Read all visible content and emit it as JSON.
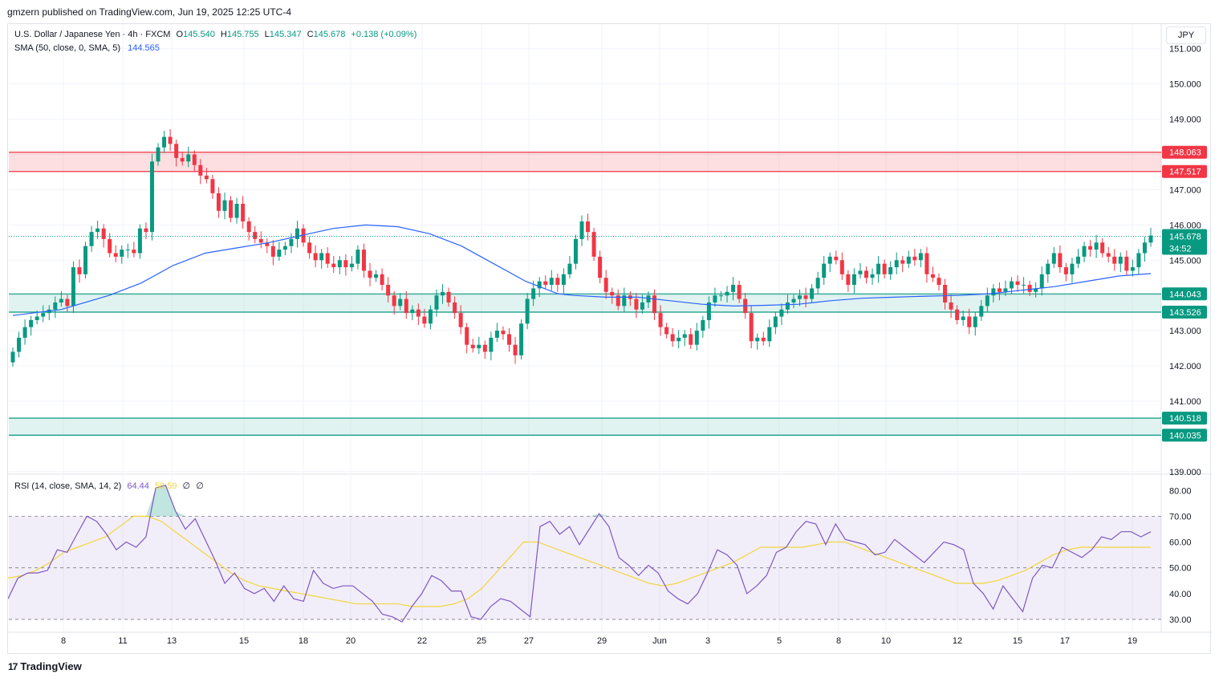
{
  "publisher": "gmzern published on TradingView.com, Jun 19, 2025 12:25 UTC-4",
  "legend": {
    "symbol": "U.S. Dollar / Japanese Yen · 4h · FXCM",
    "o_label": "O",
    "o": "145.540",
    "h_label": "H",
    "h": "145.755",
    "l_label": "L",
    "l": "145.347",
    "c_label": "C",
    "c": "145.678",
    "change": "+0.138 (+0.09%)",
    "sma_label": "SMA (50, close, 0, SMA, 5)",
    "sma_value": "144.565"
  },
  "rsi_legend": {
    "label": "RSI (14, close, SMA, 14, 2)",
    "rsi": "64.44",
    "rsi_sma": "58.59",
    "x1": "∅",
    "x2": "∅"
  },
  "currency": "JPY",
  "footer": {
    "logo_mark": "17",
    "brand": "TradingView"
  },
  "colors": {
    "up": "#089981",
    "down": "#f23645",
    "sma": "#2962ff",
    "rsi": "#7e57c2",
    "rsi_sma": "#f2d53c"
  },
  "chart_data": {
    "type": "candlestick",
    "price_axis": {
      "ticks": [
        "151.000",
        "150.000",
        "149.000",
        "148.000",
        "147.000",
        "146.000",
        "145.000",
        "144.000",
        "143.000",
        "142.000",
        "141.000",
        "140.000",
        "139.000"
      ],
      "range": [
        138.95,
        151.7
      ]
    },
    "time_axis": {
      "labels": [
        "8",
        "11",
        "13",
        "15",
        "18",
        "20",
        "22",
        "25",
        "27",
        "29",
        "Jun",
        "3",
        "5",
        "8",
        "10",
        "12",
        "15",
        "17",
        "19"
      ]
    },
    "zones": [
      {
        "name": "resistance",
        "top": 148.063,
        "bottom": 147.517,
        "top_label": "148.063",
        "bottom_label": "147.517",
        "color": "#f23645"
      },
      {
        "name": "support-1",
        "top": 144.043,
        "bottom": 143.526,
        "top_label": "144.043",
        "bottom_label": "143.526",
        "color": "#089981"
      },
      {
        "name": "support-2",
        "top": 140.518,
        "bottom": 140.035,
        "top_label": "140.518",
        "bottom_label": "140.035",
        "color": "#089981"
      }
    ],
    "last_price": {
      "value": 145.678,
      "label": "145.678",
      "countdown": "34:52"
    },
    "closes": [
      142.4,
      142.8,
      143.1,
      143.3,
      143.4,
      143.5,
      143.6,
      143.8,
      143.9,
      143.7,
      144.8,
      144.6,
      145.4,
      145.8,
      145.9,
      145.6,
      145.2,
      145.1,
      145.3,
      145.3,
      145.2,
      145.9,
      145.8,
      147.8,
      148.2,
      148.5,
      148.3,
      147.9,
      147.8,
      148.0,
      147.7,
      147.4,
      147.3,
      146.9,
      146.4,
      146.7,
      146.2,
      146.6,
      146.1,
      145.8,
      145.6,
      145.5,
      145.4,
      145.1,
      145.3,
      145.4,
      145.6,
      145.9,
      145.5,
      145.2,
      145.0,
      145.2,
      144.9,
      144.8,
      145.0,
      144.8,
      144.9,
      145.3,
      144.7,
      144.5,
      144.6,
      144.3,
      144.0,
      143.7,
      143.9,
      143.5,
      143.6,
      143.4,
      143.2,
      143.6,
      144.0,
      144.1,
      143.8,
      143.5,
      143.1,
      142.6,
      142.5,
      142.6,
      142.4,
      142.8,
      143.0,
      142.9,
      142.6,
      142.3,
      143.2,
      143.9,
      144.2,
      144.4,
      144.3,
      144.5,
      144.3,
      144.6,
      144.9,
      145.6,
      146.1,
      145.8,
      145.1,
      144.5,
      144.1,
      144.0,
      143.7,
      144.0,
      143.9,
      143.6,
      143.8,
      144.0,
      143.5,
      143.1,
      142.9,
      142.7,
      142.8,
      142.9,
      142.6,
      143.0,
      143.3,
      143.8,
      144.0,
      144.0,
      144.1,
      144.3,
      143.9,
      143.5,
      142.7,
      142.8,
      142.7,
      143.1,
      143.4,
      143.6,
      143.8,
      143.9,
      144.0,
      143.9,
      144.2,
      144.5,
      144.9,
      145.1,
      145.0,
      144.6,
      144.3,
      144.6,
      144.7,
      144.5,
      144.6,
      144.9,
      144.6,
      144.8,
      145.0,
      144.9,
      145.1,
      145.0,
      145.2,
      144.6,
      144.5,
      144.3,
      143.8,
      143.6,
      143.3,
      143.4,
      143.1,
      143.4,
      143.7,
      144.0,
      144.2,
      144.1,
      144.2,
      144.4,
      144.3,
      144.3,
      144.1,
      144.2,
      144.6,
      144.9,
      145.2,
      144.8,
      144.6,
      144.9,
      145.1,
      145.4,
      145.3,
      145.5,
      145.2,
      145.1,
      144.9,
      145.1,
      144.7,
      144.8,
      145.2,
      145.5,
      145.7
    ],
    "sma50": [
      [
        0,
        143.43
      ],
      [
        60,
        143.6
      ],
      [
        120,
        144.0
      ],
      [
        160,
        144.35
      ],
      [
        200,
        144.85
      ],
      [
        240,
        145.2
      ],
      [
        280,
        145.35
      ],
      [
        320,
        145.5
      ],
      [
        360,
        145.7
      ],
      [
        400,
        145.9
      ],
      [
        440,
        146.0
      ],
      [
        480,
        145.95
      ],
      [
        520,
        145.75
      ],
      [
        560,
        145.4
      ],
      [
        600,
        144.9
      ],
      [
        640,
        144.4
      ],
      [
        680,
        144.05
      ],
      [
        700,
        144.0
      ],
      [
        740,
        143.95
      ],
      [
        780,
        143.95
      ],
      [
        820,
        143.85
      ],
      [
        860,
        143.75
      ],
      [
        900,
        143.7
      ],
      [
        940,
        143.72
      ],
      [
        980,
        143.75
      ],
      [
        1020,
        143.85
      ],
      [
        1060,
        143.92
      ],
      [
        1100,
        143.95
      ],
      [
        1140,
        143.98
      ],
      [
        1180,
        144.0
      ],
      [
        1220,
        144.05
      ],
      [
        1260,
        144.15
      ],
      [
        1300,
        144.25
      ],
      [
        1340,
        144.4
      ],
      [
        1380,
        144.55
      ],
      [
        1420,
        144.62
      ]
    ],
    "rsi": {
      "range": [
        25,
        86
      ],
      "ticks": [
        "80.00",
        "70.00",
        "60.00",
        "50.00",
        "40.00",
        "30.00"
      ],
      "bands": [
        70,
        50,
        30
      ],
      "values": [
        38,
        46,
        48,
        48,
        49,
        57,
        56,
        63,
        70,
        68,
        63,
        57,
        60,
        58,
        62,
        81,
        82,
        72,
        65,
        69,
        61,
        53,
        44,
        48,
        42,
        40,
        42,
        37,
        43,
        38,
        37,
        49,
        44,
        42,
        43,
        43,
        40,
        37,
        32,
        31,
        29,
        35,
        40,
        47,
        45,
        41,
        41,
        31,
        30,
        35,
        38,
        37,
        34,
        31,
        66,
        68,
        63,
        66,
        59,
        65,
        71,
        66,
        54,
        51,
        47,
        51,
        48,
        41,
        38,
        36,
        40,
        48,
        57,
        55,
        51,
        40,
        43,
        47,
        56,
        58,
        64,
        68,
        67,
        59,
        67,
        61,
        60,
        59,
        55,
        56,
        61,
        58,
        55,
        52,
        56,
        60,
        59,
        57,
        44,
        40,
        34,
        43,
        38,
        33,
        46,
        51,
        50,
        58,
        56,
        54,
        57,
        62,
        61,
        64,
        64,
        62,
        64
      ],
      "sma": [
        46,
        47,
        49,
        52,
        56,
        58,
        60,
        62,
        66,
        70,
        70,
        68,
        64,
        60,
        56,
        52,
        48,
        45,
        43,
        42,
        41,
        40,
        39,
        38,
        37,
        36,
        36,
        36,
        36,
        35,
        35,
        35,
        36,
        38,
        42,
        48,
        54,
        60,
        60,
        58,
        56,
        54,
        52,
        50,
        48,
        46,
        44,
        43,
        44,
        46,
        48,
        50,
        52,
        55,
        58,
        58,
        58,
        58,
        59,
        60,
        60,
        58,
        56,
        54,
        52,
        50,
        48,
        46,
        44,
        44,
        44,
        45,
        47,
        49,
        52,
        55,
        57,
        58,
        58,
        58,
        58,
        58,
        58
      ]
    }
  }
}
